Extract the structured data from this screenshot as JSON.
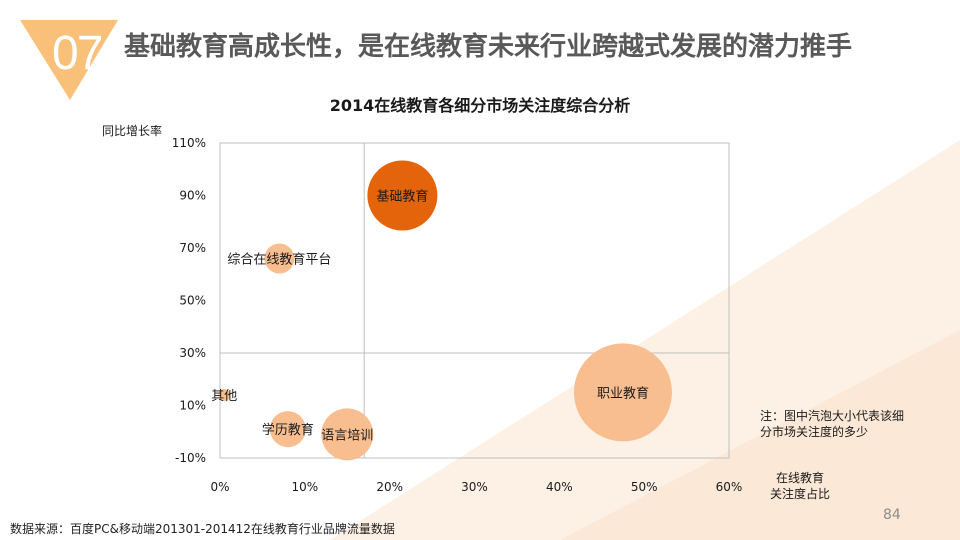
{
  "header": {
    "section_number": "07",
    "title": "基础教育高成长性，是在线教育未来行业跨越式发展的潜力推手"
  },
  "colors": {
    "accent": "#F5A623",
    "bubble_light": "#F9BE8F",
    "bubble_dark": "#E3640A",
    "bg_tint": "#FDF1E6"
  },
  "chart_data": {
    "type": "scatter",
    "title": "2014在线教育各细分市场关注度综合分析",
    "xlabel_lines": [
      "在线教育",
      "关注度占比"
    ],
    "ylabel": "同比增长率",
    "xlim": [
      0,
      60
    ],
    "ylim": [
      -10,
      110
    ],
    "x_ticks": [
      "0%",
      "10%",
      "20%",
      "30%",
      "40%",
      "50%",
      "60%"
    ],
    "x_tick_values": [
      0,
      10,
      20,
      30,
      40,
      50,
      60
    ],
    "y_ticks": [
      "-10%",
      "10%",
      "30%",
      "50%",
      "70%",
      "90%",
      "110%"
    ],
    "y_tick_values": [
      -10,
      10,
      30,
      50,
      70,
      90,
      110
    ],
    "quadrant_lines": {
      "x": 17,
      "y": 30
    },
    "grid": false,
    "bubbles": [
      {
        "name": "基础教育",
        "x": 21.5,
        "y": 90,
        "size": 35,
        "highlight": true
      },
      {
        "name": "综合在线教育平台",
        "x": 7,
        "y": 66,
        "size": 15,
        "highlight": false
      },
      {
        "name": "其他",
        "x": 0.5,
        "y": 14,
        "size": 6,
        "highlight": false
      },
      {
        "name": "学历教育",
        "x": 8,
        "y": 1,
        "size": 18,
        "highlight": false
      },
      {
        "name": "语言培训",
        "x": 15,
        "y": -1,
        "size": 26,
        "highlight": false
      },
      {
        "name": "职业教育",
        "x": 47.5,
        "y": 15,
        "size": 49,
        "highlight": false
      }
    ],
    "note_lines": [
      "注：图中汽泡大小代表该细",
      "分市场关注度的多少"
    ]
  },
  "footer": {
    "source": "数据来源：百度PC&移动端201301-201412在线教育行业品牌流量数据",
    "page_number": "84"
  }
}
